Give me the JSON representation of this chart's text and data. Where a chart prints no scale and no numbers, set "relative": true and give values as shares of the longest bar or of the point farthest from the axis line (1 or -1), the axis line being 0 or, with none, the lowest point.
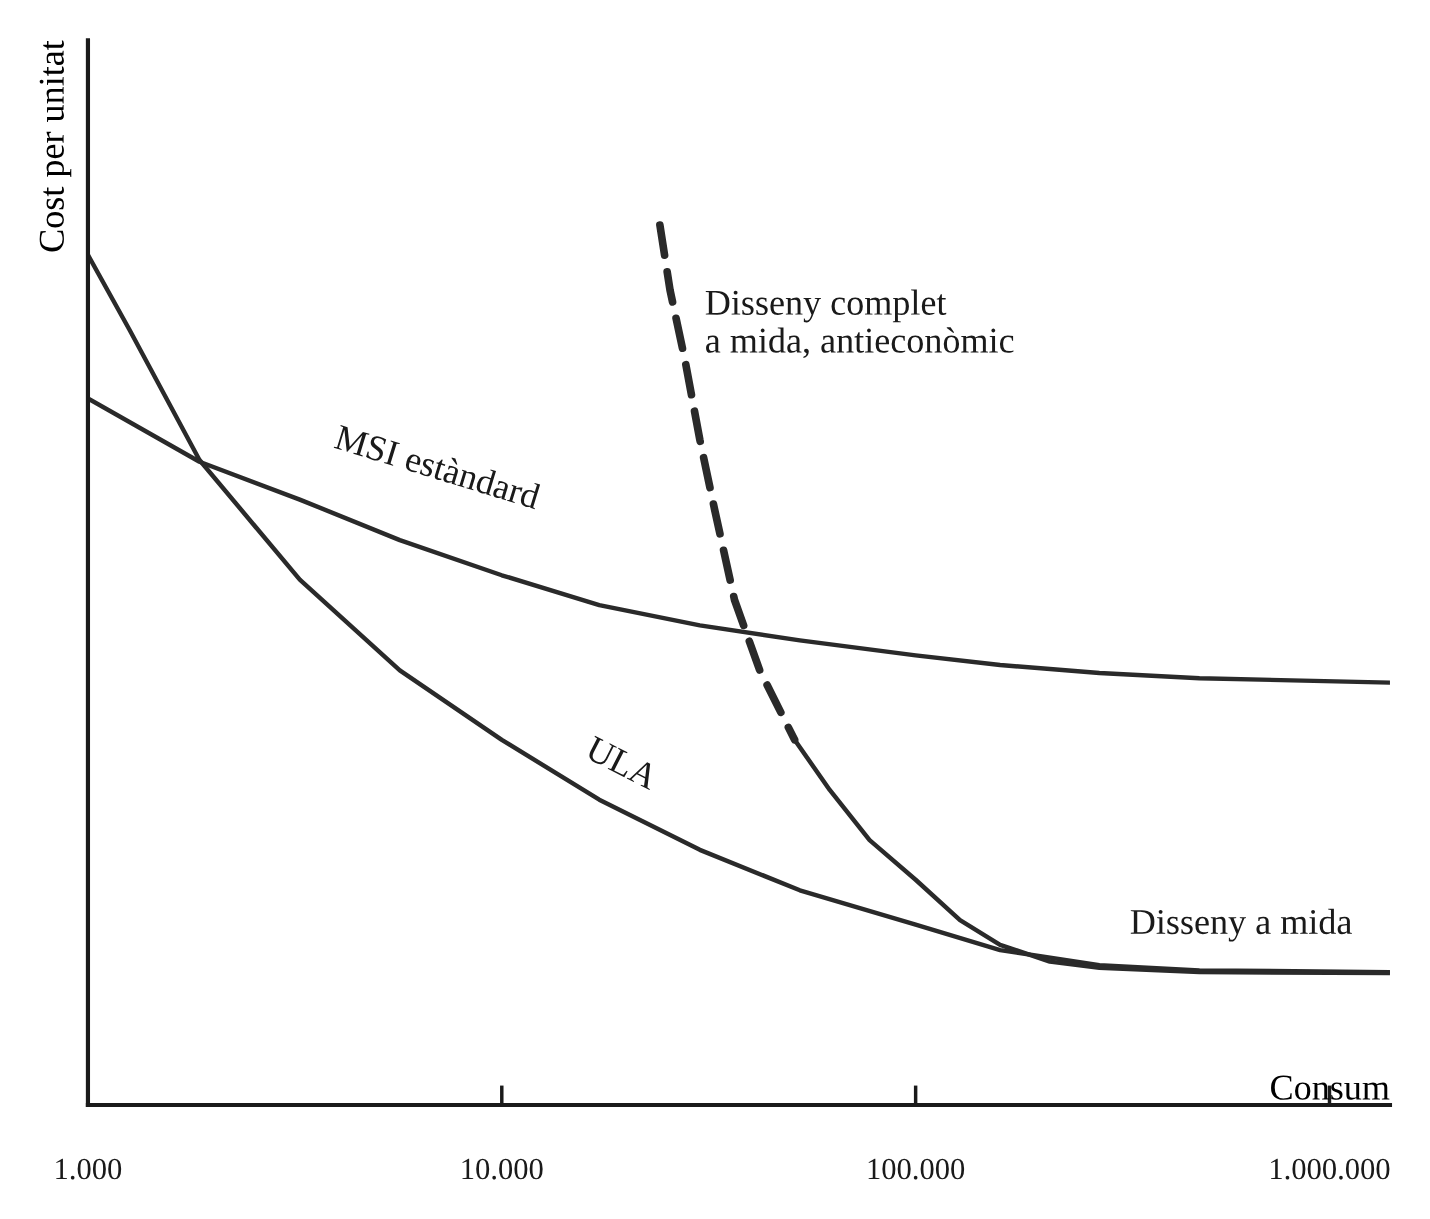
{
  "chart_data": {
    "type": "line",
    "xlabel": "Consum",
    "ylabel": "Cost per unitat",
    "log": "x",
    "relative": true,
    "xlim": [
      1000,
      1400000
    ],
    "xticks": [
      {
        "value": 1000,
        "label": "1.000"
      },
      {
        "value": 10000,
        "label": "10.000"
      },
      {
        "value": 100000,
        "label": "100.000"
      },
      {
        "value": 1000000,
        "label": "1.000.000"
      }
    ],
    "grid": false,
    "legend": false,
    "marker": "none",
    "series": [
      {
        "name": "ULA",
        "color": "#2a2a2a",
        "line_style": "solid",
        "x": [
          1000,
          1260,
          1860,
          3250,
          5670,
          10000,
          17200,
          30100,
          52500,
          100000,
          160000,
          278000,
          485000,
          1400000
        ],
        "values": [
          0.966,
          0.881,
          0.733,
          0.597,
          0.494,
          0.415,
          0.347,
          0.29,
          0.244,
          0.205,
          0.176,
          0.159,
          0.153,
          0.151
        ]
      },
      {
        "name": "MSI estàndard",
        "color": "#2a2a2a",
        "line_style": "solid",
        "x": [
          1000,
          1860,
          3250,
          5670,
          10000,
          17200,
          30100,
          52500,
          100000,
          160000,
          278000,
          485000,
          1400000
        ],
        "values": [
          0.803,
          0.731,
          0.688,
          0.642,
          0.602,
          0.568,
          0.545,
          0.528,
          0.511,
          0.5,
          0.491,
          0.485,
          0.48
        ]
      },
      {
        "name": "Disseny a mida",
        "color": "#2a2a2a",
        "line_style": "solid",
        "x": [
          51000,
          62000,
          77400,
          100000,
          128000,
          160000,
          211000,
          278000,
          485000,
          1400000
        ],
        "values": [
          0.415,
          0.358,
          0.301,
          0.256,
          0.21,
          0.182,
          0.163,
          0.156,
          0.151,
          0.15
        ]
      },
      {
        "name": "Disseny complet\na mida, antieconòmic",
        "color": "#2a2a2a",
        "line_style": "dashed",
        "x": [
          24100,
          25500,
          27700,
          30100,
          32700,
          36500,
          42000,
          51000
        ],
        "values": [
          1.0,
          0.926,
          0.847,
          0.756,
          0.676,
          0.574,
          0.494,
          0.415
        ]
      }
    ]
  }
}
